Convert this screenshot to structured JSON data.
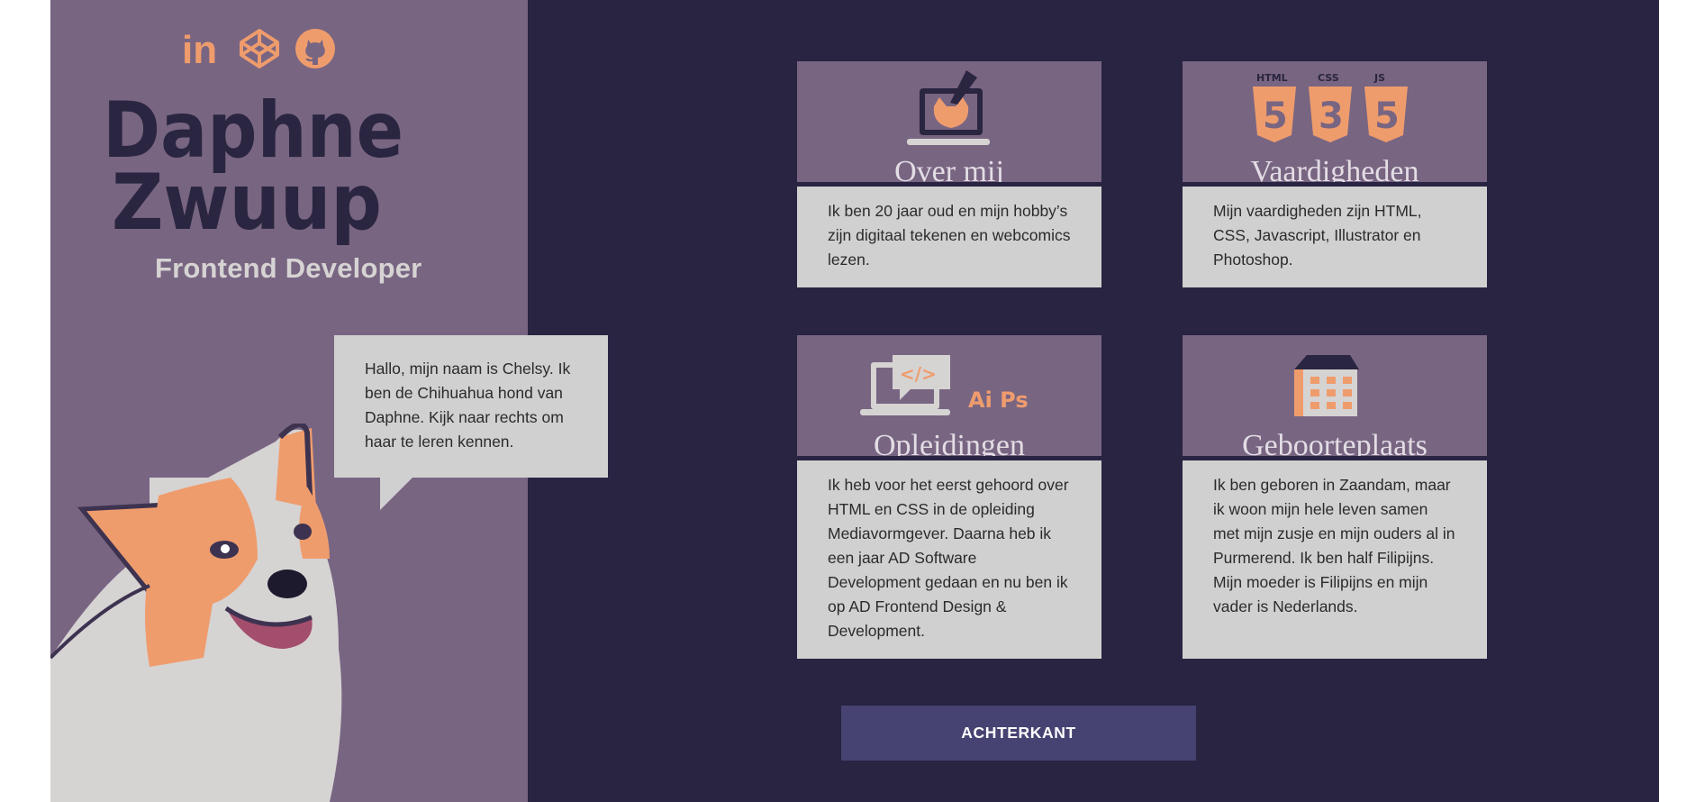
{
  "colors": {
    "background": "#282441",
    "sidebar": "#786582",
    "card_header": "#786582",
    "card_body": "#d1d0d0",
    "accent": "#ef9c6d",
    "logo_text": "#2a2540",
    "button": "#464271"
  },
  "social": {
    "icons": [
      "linkedin-icon",
      "codepen-icon",
      "github-icon"
    ],
    "linkedin_text": "in"
  },
  "logo": {
    "line1": "Daphne",
    "line2": "Zwuup"
  },
  "role": "Frontend Developer",
  "bubble": {
    "text": "Hallo, mijn naam is Chelsy. Ik ben de Chihuahua hond van Daphne. Kijk naar rechts om haar te leren kennen."
  },
  "cards": [
    {
      "title": "Over mij",
      "icon": "laptop-drawing-icon",
      "body": "Ik ben 20 jaar oud en mijn hobby’s zijn digitaal tekenen en webcomics lezen."
    },
    {
      "title": "Vaardigheden",
      "icon": "html-css-js-icon",
      "icon_labels": [
        "HTML",
        "CSS",
        "JS"
      ],
      "body": "Mijn vaardigheden zijn HTML, CSS, Javascript, Illustrator en Photoshop."
    },
    {
      "title": "Opleidingen",
      "icon": "laptop-code-icon",
      "icon_labels": [
        "</>",
        "Ai Ps"
      ],
      "body": "Ik heb voor het eerst gehoord over HTML en CSS in de opleiding Mediavormgever. Daarna heb ik een jaar AD Software Development gedaan en nu ben ik op AD Frontend Design & Development."
    },
    {
      "title": "Geboorteplaats",
      "icon": "house-icon",
      "body": "Ik ben geboren in Zaandam, maar ik woon mijn hele leven samen met mijn zusje en mijn ouders al in Purmerend. Ik ben half Filipijns. Mijn moeder is Filipijns en mijn vader is Nederlands."
    }
  ],
  "button": {
    "label": "ACHTERKANT"
  }
}
